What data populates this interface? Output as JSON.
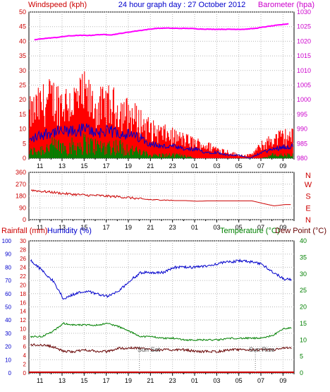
{
  "top": {
    "ylabel_left": "Windspeed (kph)",
    "title": "24 hour graph day : 27 October 2012",
    "ylabel_right": "Barometer (hpa)"
  },
  "bottom": {
    "ylabel_left1": "Rainfall (mm)",
    "ylabel_left2": "Humidity (%)",
    "ylabel_right1": "Temperature (°C)",
    "ylabel_right2": "Dew Point (°C)",
    "sunset_label": "Sun Set",
    "sunrise_label": "Sun Rise"
  },
  "colors": {
    "wind": "#ff0000",
    "gust_avg": "#0000cc",
    "wind_low": "#008000",
    "barometer": "#ff00ff",
    "direction": "#cc0000",
    "humidity": "#0000cc",
    "temperature": "#008000",
    "dewpoint": "#660000",
    "rain": "#cc0000",
    "axis_red": "#cc0000",
    "axis_blue": "#0000cc",
    "axis_green": "#008000",
    "axis_magenta": "#cc00cc",
    "grid": "#b8b8b8"
  },
  "chart_data": [
    {
      "type": "line",
      "name": "wind-barometer",
      "title": "24 hour graph day : 27 October 2012",
      "x_ticks": [
        "11",
        "13",
        "15",
        "17",
        "19",
        "21",
        "23",
        "01",
        "03",
        "05",
        "07",
        "09"
      ],
      "left_axis": {
        "label": "Windspeed (kph)",
        "ticks": [
          "50",
          "45",
          "40",
          "35",
          "30",
          "25",
          "20",
          "15",
          "10",
          "5",
          "0"
        ],
        "ylim": [
          0,
          50
        ]
      },
      "right_axis": {
        "label": "Barometer (hpa)",
        "ticks": [
          "1030",
          "1025",
          "1020",
          "1015",
          "1010",
          "1005",
          "1000",
          "995",
          "990",
          "985",
          "980"
        ],
        "ylim": [
          980,
          1030
        ]
      },
      "series": [
        {
          "kind": "wind_gust",
          "x": [
            10,
            11,
            12,
            13,
            14,
            15,
            16,
            17,
            18,
            19,
            20,
            21,
            22,
            23,
            0,
            1,
            2,
            3,
            4,
            5,
            6,
            7,
            8,
            9
          ],
          "values": [
            14,
            17,
            19,
            18,
            18,
            20,
            16,
            17,
            16,
            14,
            12,
            9,
            8,
            7,
            6,
            5,
            4,
            3,
            2,
            1,
            1,
            4,
            6,
            7
          ]
        },
        {
          "kind": "wind_avg",
          "x": [
            10,
            11,
            12,
            13,
            14,
            15,
            16,
            17,
            18,
            19,
            20,
            21,
            22,
            23,
            0,
            1,
            2,
            3,
            4,
            5,
            6,
            7,
            8,
            9
          ],
          "values": [
            6,
            8,
            9,
            9,
            9,
            10,
            9,
            9,
            9,
            8,
            7,
            5,
            4,
            4,
            3,
            3,
            2,
            2,
            1,
            1,
            0,
            2,
            3,
            4
          ]
        },
        {
          "kind": "wind_low",
          "x": [
            10,
            11,
            12,
            13,
            14,
            15,
            16,
            17,
            18,
            19,
            20,
            21,
            22,
            23,
            0,
            1,
            2,
            3,
            4,
            5,
            6,
            7,
            8,
            9
          ],
          "values": [
            2,
            3,
            4,
            4,
            4,
            5,
            4,
            4,
            4,
            3,
            2,
            1,
            1,
            1,
            1,
            0,
            0,
            0,
            0,
            0,
            0,
            0,
            1,
            1
          ]
        },
        {
          "kind": "barometer",
          "x": [
            10,
            11,
            12,
            13,
            14,
            15,
            16,
            17,
            18,
            19,
            20,
            21,
            22,
            23,
            0,
            1,
            2,
            3,
            4,
            5,
            6,
            7,
            8,
            9
          ],
          "values": [
            1020.5,
            1021,
            1021.3,
            1021.8,
            1022,
            1022,
            1022.3,
            1022.2,
            1022.8,
            1023.4,
            1023.9,
            1024.4,
            1024.5,
            1024.4,
            1024.4,
            1024.2,
            1024.1,
            1024.1,
            1024.1,
            1024.1,
            1024.4,
            1025,
            1025.5,
            1026
          ]
        }
      ]
    },
    {
      "type": "line",
      "name": "wind-direction",
      "x_ticks": [
        "11",
        "13",
        "15",
        "17",
        "19",
        "21",
        "23",
        "01",
        "03",
        "05",
        "07",
        "09"
      ],
      "left_axis": {
        "ticks": [
          "360",
          "270",
          "180",
          "90",
          "0"
        ],
        "ylim": [
          0,
          360
        ]
      },
      "right_axis": {
        "ticks": [
          "N",
          "W",
          "S",
          "E",
          "N"
        ]
      },
      "series": [
        {
          "kind": "direction",
          "x": [
            10,
            11,
            12,
            13,
            14,
            15,
            16,
            17,
            18,
            19,
            20,
            21,
            22,
            23,
            0,
            1,
            2,
            3,
            4,
            5,
            6,
            7,
            8,
            9
          ],
          "values": [
            225,
            215,
            208,
            198,
            192,
            186,
            184,
            178,
            174,
            166,
            157,
            151,
            150,
            145,
            145,
            140,
            143,
            143,
            143,
            143,
            143,
            123,
            105,
            115
          ]
        }
      ]
    },
    {
      "type": "line",
      "name": "humidity-temperature",
      "x_ticks": [
        "11",
        "13",
        "15",
        "17",
        "19",
        "21",
        "23",
        "01",
        "03",
        "05",
        "07",
        "09"
      ],
      "left_axis_rain": {
        "label": "Rainfall (mm)",
        "ticks": [
          "30",
          "28",
          "26",
          "24",
          "22",
          "20",
          "18",
          "16",
          "14",
          "12",
          "10",
          "8",
          "6",
          "4",
          "2",
          "0"
        ],
        "ylim": [
          0,
          30
        ]
      },
      "left_axis_humidity": {
        "label": "Humidity (%)",
        "ticks": [
          "100",
          "90",
          "80",
          "70",
          "60",
          "50",
          "40",
          "30",
          "20",
          "10",
          "0"
        ],
        "ylim": [
          0,
          100
        ]
      },
      "right_axis": {
        "label": "Temperature (°C)",
        "ticks": [
          "40",
          "35",
          "30",
          "25",
          "20",
          "15",
          "10",
          "5",
          "0"
        ],
        "ylim": [
          0,
          40
        ]
      },
      "annotations": [
        {
          "label": "Sun Set",
          "x": 20
        },
        {
          "label": "Sun Rise",
          "x": 6.5
        }
      ],
      "series": [
        {
          "kind": "humidity",
          "x": [
            10,
            11,
            12,
            13,
            14,
            15,
            16,
            17,
            18,
            19,
            20,
            21,
            22,
            23,
            0,
            1,
            2,
            3,
            4,
            5,
            6,
            7,
            8,
            9
          ],
          "values": [
            85,
            78,
            70,
            56,
            60,
            62,
            60,
            58,
            62,
            70,
            76,
            76,
            76,
            80,
            80,
            80,
            81,
            83,
            84,
            85,
            84,
            82,
            76,
            71
          ]
        },
        {
          "kind": "temperature",
          "x": [
            10,
            11,
            12,
            13,
            14,
            15,
            16,
            17,
            18,
            19,
            20,
            21,
            22,
            23,
            0,
            1,
            2,
            3,
            4,
            5,
            6,
            7,
            8,
            9
          ],
          "values": [
            11,
            11,
            12.5,
            15,
            14.5,
            14.5,
            14.5,
            15,
            14,
            12.5,
            11,
            11,
            10.5,
            10.5,
            10,
            10,
            10,
            10,
            10.5,
            10.5,
            10.5,
            10.5,
            11.5,
            13.5
          ]
        },
        {
          "kind": "dewpoint",
          "x": [
            10,
            11,
            12,
            13,
            14,
            15,
            16,
            17,
            18,
            19,
            20,
            21,
            22,
            23,
            0,
            1,
            2,
            3,
            4,
            5,
            6,
            7,
            8,
            9
          ],
          "values": [
            8.5,
            8.5,
            8,
            6.5,
            6.5,
            7,
            6.5,
            6.5,
            7.5,
            7.5,
            7.5,
            7,
            7,
            7,
            7,
            6.5,
            6.5,
            6.5,
            7,
            7,
            7,
            7,
            7,
            7.5
          ]
        },
        {
          "kind": "rain",
          "x": [
            10,
            11,
            12,
            13,
            14,
            15,
            16,
            17,
            18,
            19,
            20,
            21,
            22,
            23,
            0,
            1,
            2,
            3,
            4,
            5,
            6,
            7,
            8,
            9
          ],
          "values": [
            0,
            0,
            0,
            0,
            0,
            0,
            0,
            0,
            0,
            0,
            0,
            0,
            0,
            0,
            0,
            0,
            0,
            0,
            0,
            0,
            0,
            0,
            0,
            0
          ]
        }
      ]
    }
  ]
}
